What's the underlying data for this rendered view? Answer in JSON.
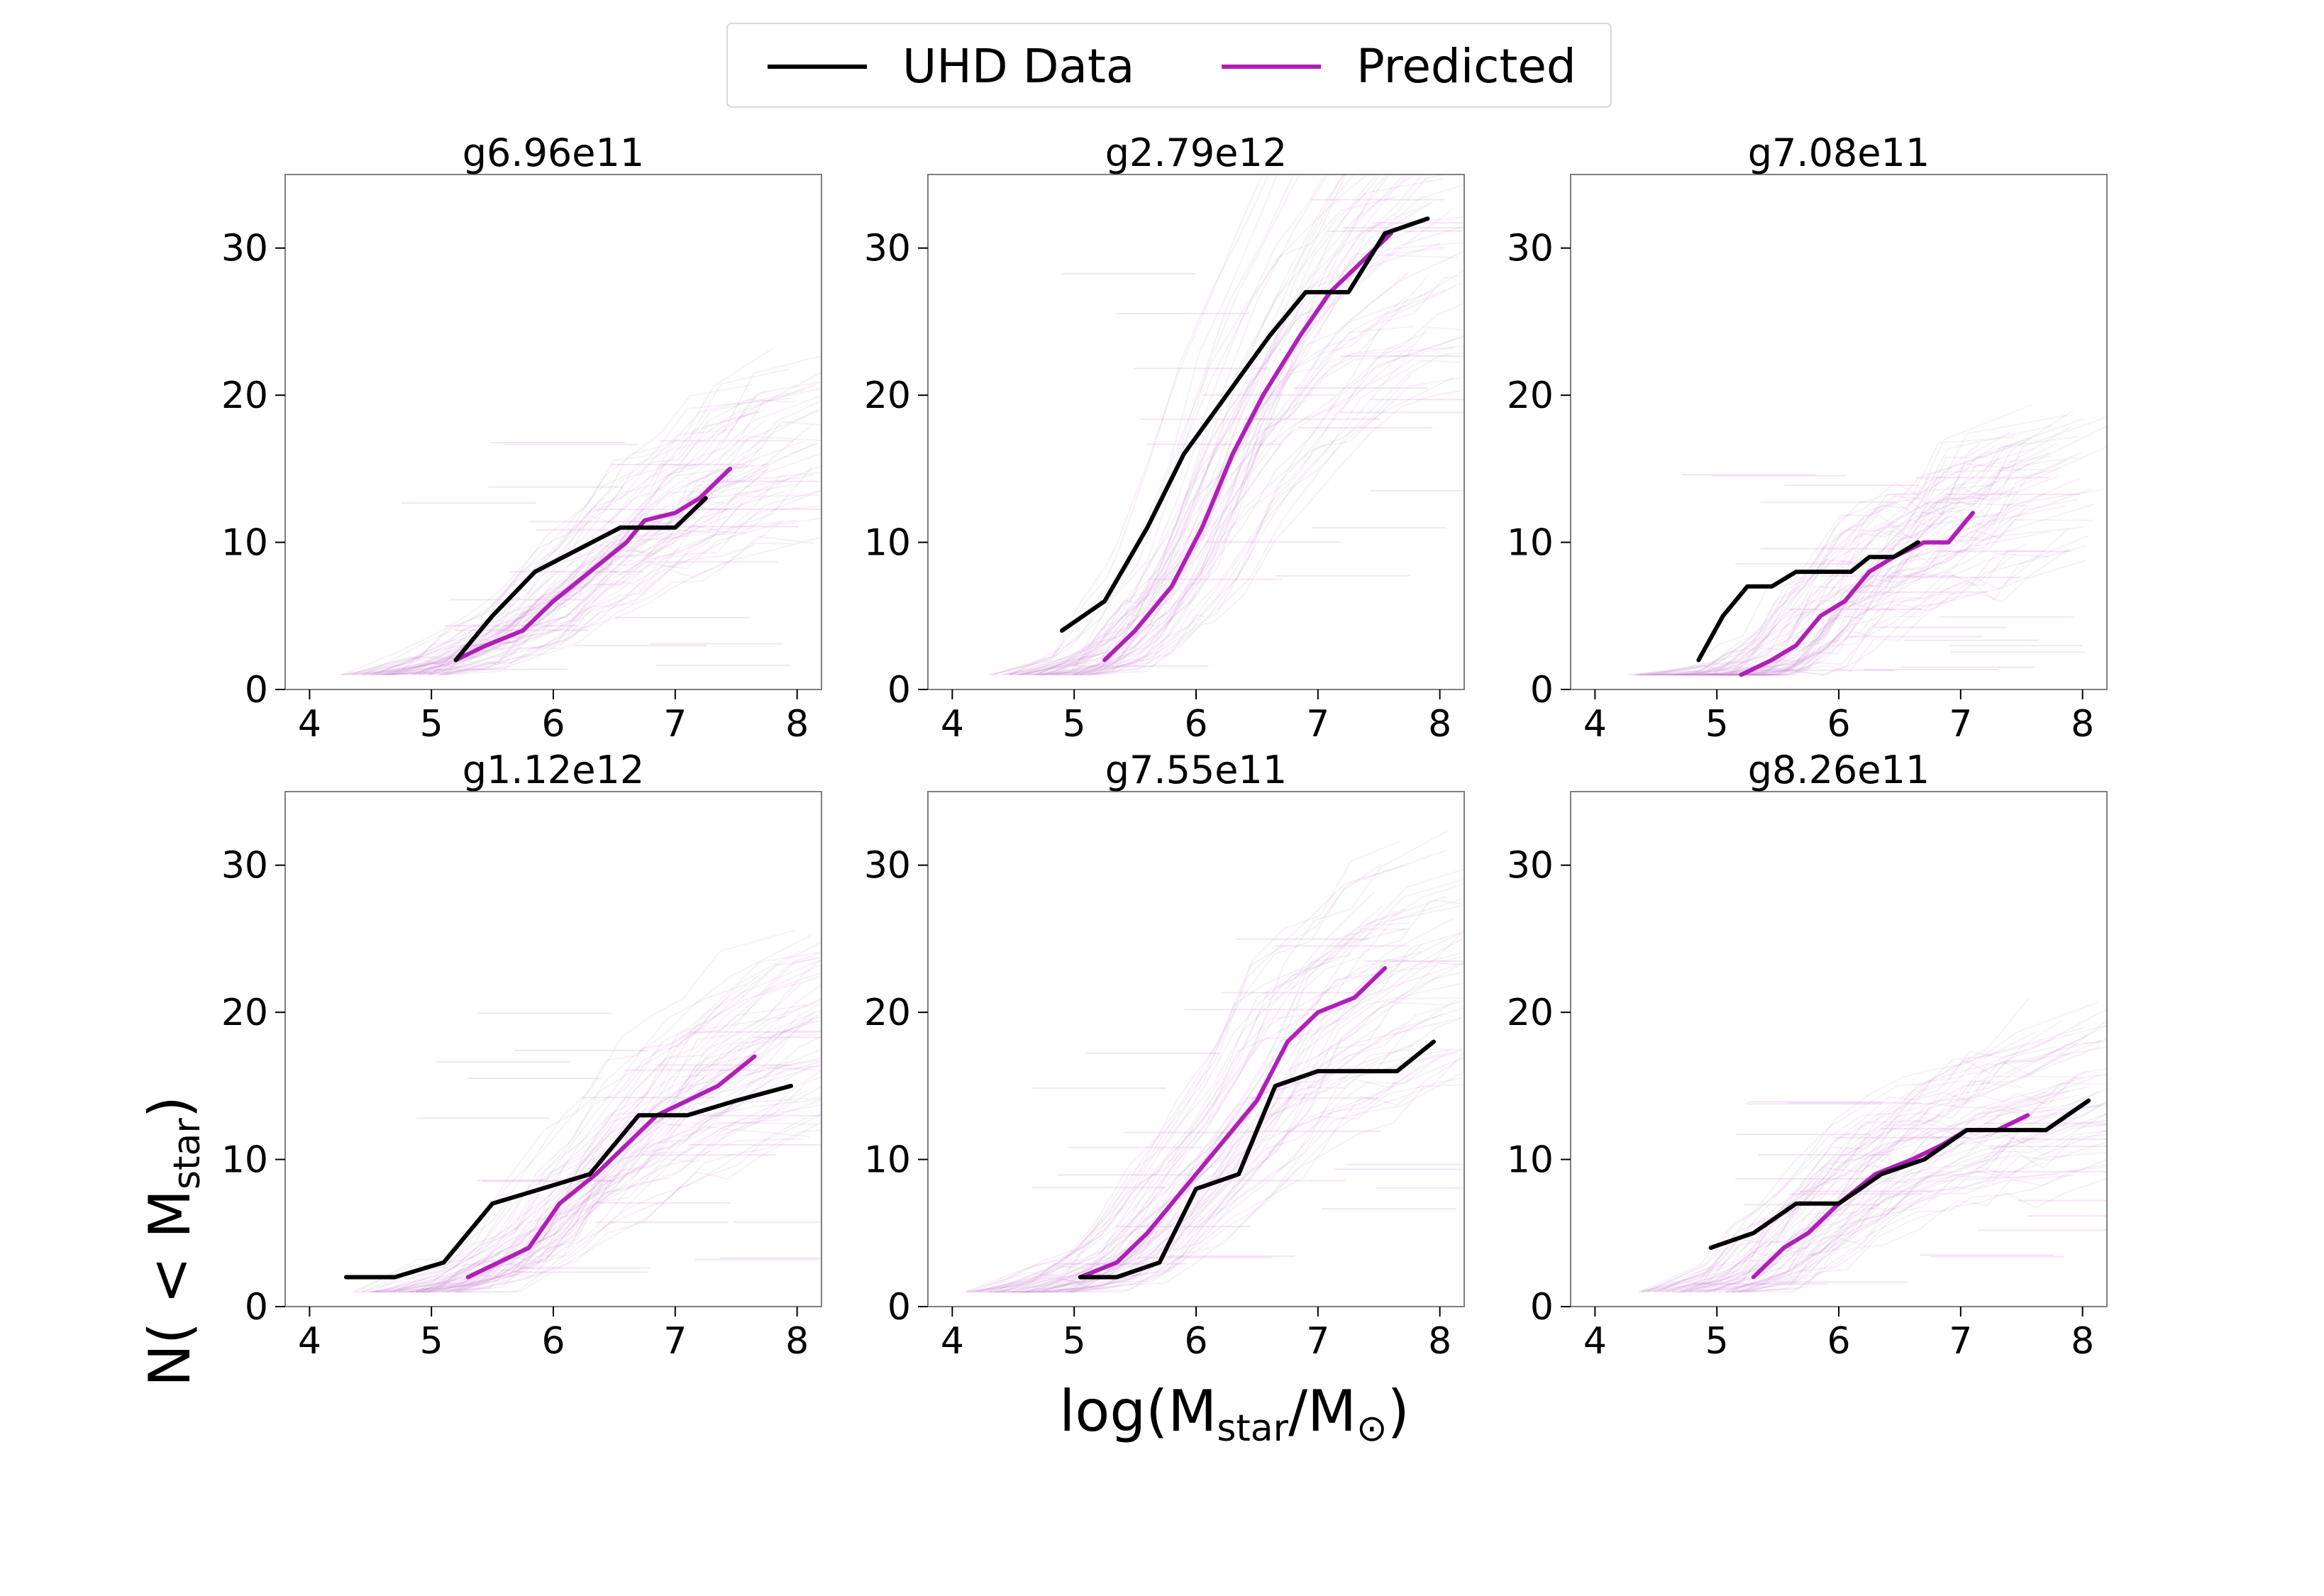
{
  "legend": {
    "items": [
      {
        "label": "UHD Data",
        "color": "#000000"
      },
      {
        "label": "Predicted",
        "color": "#b01fb8"
      }
    ]
  },
  "axis_labels": {
    "y_main": "N( < M",
    "y_sub": "star",
    "y_close": ")",
    "x_main": "log(M",
    "x_sub": "star",
    "x_mid": "/M",
    "x_sub2": "⊙",
    "x_close": ")"
  },
  "colors": {
    "data": "#000000",
    "predicted": "#b01fb8",
    "ensemble": "#c678cc"
  },
  "chart_data": [
    {
      "type": "line",
      "title": "g6.96e11",
      "xlim": [
        3.8,
        8.2
      ],
      "ylim": [
        0,
        35
      ],
      "xticks": [
        4,
        5,
        6,
        7,
        8
      ],
      "yticks": [
        0,
        10,
        20,
        30
      ],
      "series": [
        {
          "name": "UHD Data",
          "x": [
            5.2,
            5.5,
            5.85,
            6.2,
            6.55,
            6.7,
            7.0,
            7.25
          ],
          "y": [
            2,
            5,
            8,
            9.5,
            11,
            11,
            11,
            13
          ]
        },
        {
          "name": "Predicted",
          "x": [
            5.2,
            5.45,
            5.75,
            6.0,
            6.3,
            6.6,
            6.75,
            7.0,
            7.2,
            7.45
          ],
          "y": [
            2,
            3,
            4,
            6,
            8,
            10,
            11.5,
            12,
            13,
            15
          ]
        }
      ]
    },
    {
      "type": "line",
      "title": "g2.79e12",
      "xlim": [
        3.8,
        8.2
      ],
      "ylim": [
        0,
        35
      ],
      "xticks": [
        4,
        5,
        6,
        7,
        8
      ],
      "yticks": [
        0,
        10,
        20,
        30
      ],
      "series": [
        {
          "name": "UHD Data",
          "x": [
            4.9,
            5.25,
            5.6,
            5.9,
            6.25,
            6.6,
            6.9,
            7.25,
            7.55,
            7.9
          ],
          "y": [
            4,
            6,
            11,
            16,
            20,
            24,
            27,
            27,
            31,
            32
          ]
        },
        {
          "name": "Predicted",
          "x": [
            5.25,
            5.5,
            5.7,
            5.8,
            6.05,
            6.3,
            6.55,
            6.85,
            7.1,
            7.35,
            7.6
          ],
          "y": [
            2,
            4,
            6,
            7,
            11,
            16,
            20,
            24,
            27,
            29,
            31
          ]
        }
      ]
    },
    {
      "type": "line",
      "title": "g7.08e11",
      "xlim": [
        3.8,
        8.2
      ],
      "ylim": [
        0,
        35
      ],
      "xticks": [
        4,
        5,
        6,
        7,
        8
      ],
      "yticks": [
        0,
        10,
        20,
        30
      ],
      "series": [
        {
          "name": "UHD Data",
          "x": [
            4.85,
            5.05,
            5.25,
            5.45,
            5.65,
            5.85,
            6.1,
            6.25,
            6.45,
            6.65
          ],
          "y": [
            2,
            5,
            7,
            7,
            8,
            8,
            8,
            9,
            9,
            10
          ]
        },
        {
          "name": "Predicted",
          "x": [
            5.2,
            5.45,
            5.65,
            5.85,
            6.05,
            6.25,
            6.45,
            6.7,
            6.9,
            7.1
          ],
          "y": [
            1,
            2,
            3,
            5,
            6,
            8,
            9,
            10,
            10,
            12
          ]
        }
      ]
    },
    {
      "type": "line",
      "title": "g1.12e12",
      "xlim": [
        3.8,
        8.2
      ],
      "ylim": [
        0,
        35
      ],
      "xticks": [
        4,
        5,
        6,
        7,
        8
      ],
      "yticks": [
        0,
        10,
        20,
        30
      ],
      "series": [
        {
          "name": "UHD Data",
          "x": [
            4.3,
            4.7,
            5.1,
            5.5,
            5.9,
            6.3,
            6.7,
            7.1,
            7.5,
            7.95
          ],
          "y": [
            2,
            2,
            3,
            7,
            8,
            9,
            13,
            13,
            14,
            15
          ]
        },
        {
          "name": "Predicted",
          "x": [
            5.3,
            5.55,
            5.8,
            6.05,
            6.35,
            6.6,
            6.85,
            7.1,
            7.35,
            7.65
          ],
          "y": [
            2,
            3,
            4,
            7,
            9,
            11,
            13,
            14,
            15,
            17
          ]
        }
      ]
    },
    {
      "type": "line",
      "title": "g7.55e11",
      "xlim": [
        3.8,
        8.2
      ],
      "ylim": [
        0,
        35
      ],
      "xticks": [
        4,
        5,
        6,
        7,
        8
      ],
      "yticks": [
        0,
        10,
        20,
        30
      ],
      "series": [
        {
          "name": "UHD Data",
          "x": [
            5.05,
            5.35,
            5.7,
            6.0,
            6.35,
            6.65,
            7.0,
            7.3,
            7.65,
            7.95
          ],
          "y": [
            2,
            2,
            3,
            8,
            9,
            15,
            16,
            16,
            16,
            18
          ]
        },
        {
          "name": "Predicted",
          "x": [
            5.05,
            5.35,
            5.6,
            5.9,
            6.2,
            6.5,
            6.75,
            7.0,
            7.3,
            7.55
          ],
          "y": [
            2,
            3,
            5,
            8,
            11,
            14,
            18,
            20,
            21,
            23
          ]
        }
      ]
    },
    {
      "type": "line",
      "title": "g8.26e11",
      "xlim": [
        3.8,
        8.2
      ],
      "ylim": [
        0,
        35
      ],
      "xticks": [
        4,
        5,
        6,
        7,
        8
      ],
      "yticks": [
        0,
        10,
        20,
        30
      ],
      "series": [
        {
          "name": "UHD Data",
          "x": [
            4.95,
            5.3,
            5.65,
            6.0,
            6.35,
            6.7,
            7.05,
            7.35,
            7.7,
            8.05
          ],
          "y": [
            4,
            5,
            7,
            7,
            9,
            10,
            12,
            12,
            12,
            14
          ]
        },
        {
          "name": "Predicted",
          "x": [
            5.3,
            5.55,
            5.75,
            6.0,
            6.3,
            6.6,
            6.85,
            7.05,
            7.3,
            7.55
          ],
          "y": [
            2,
            4,
            5,
            7,
            9,
            10,
            11,
            12,
            12,
            13
          ]
        }
      ]
    }
  ]
}
